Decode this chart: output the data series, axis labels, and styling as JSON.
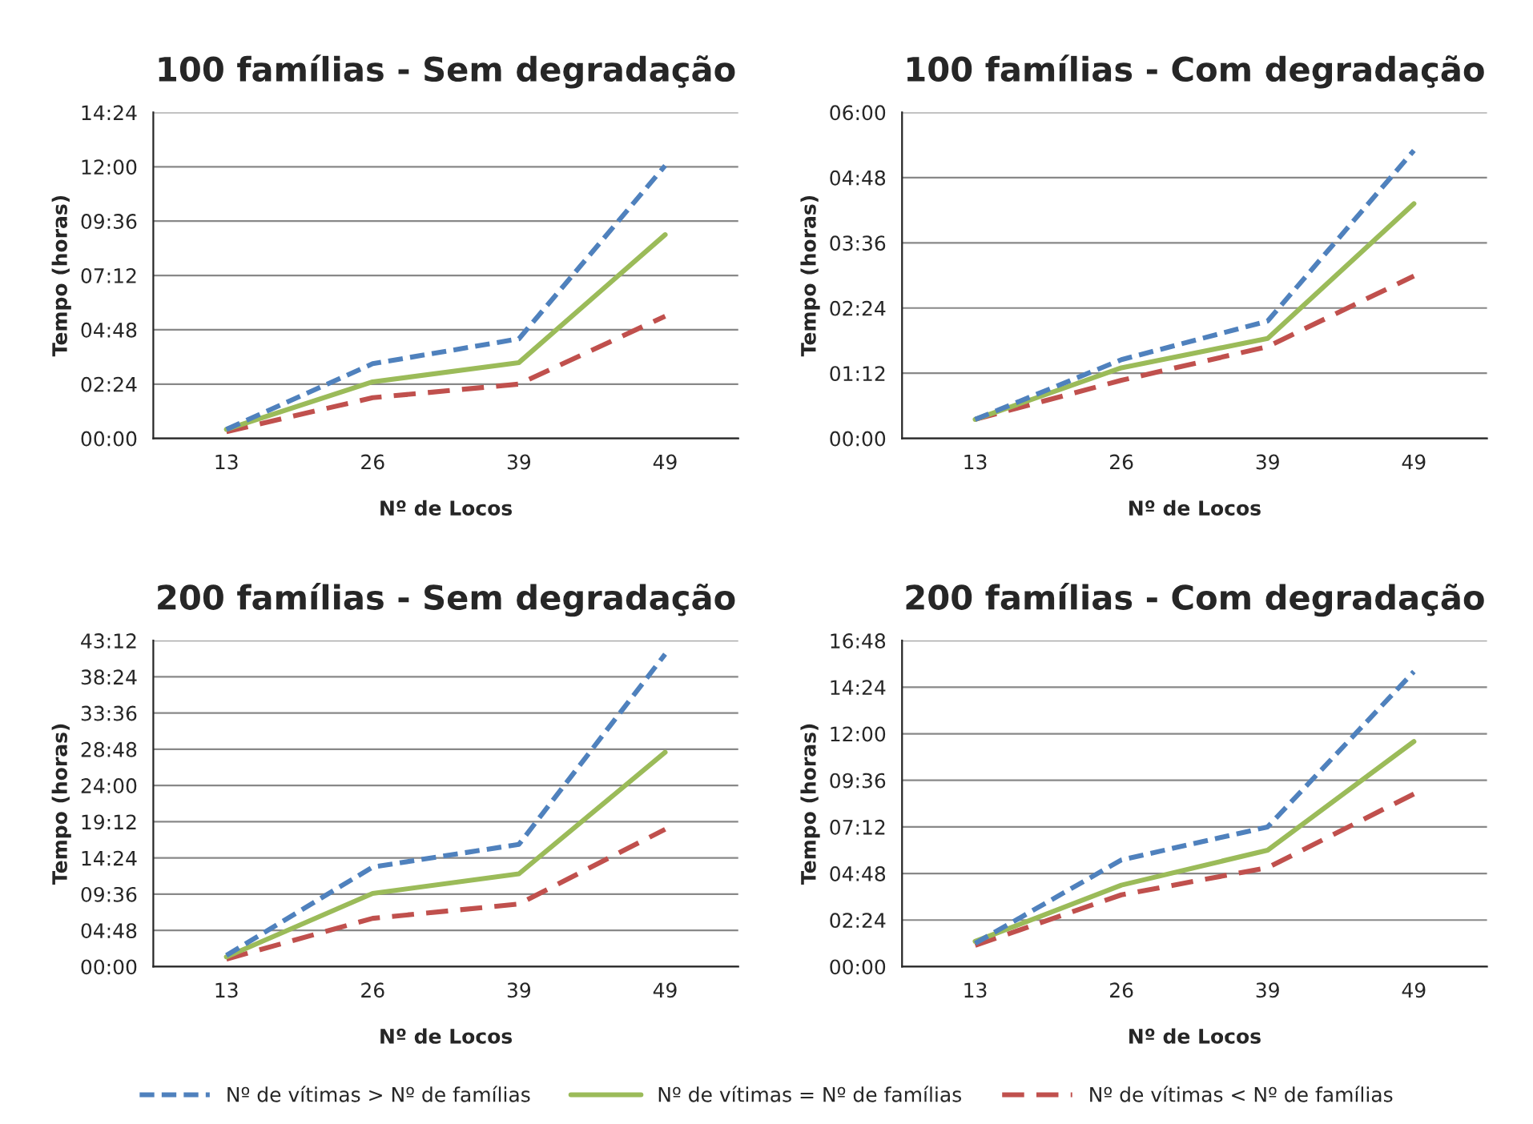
{
  "chart_data": [
    {
      "type": "line",
      "title": "100 famílias - Sem degradação",
      "xlabel": "Nº de Locos",
      "ylabel": "Tempo (horas)",
      "categories": [
        "13",
        "26",
        "39",
        "49"
      ],
      "grid": "y",
      "ylim": [
        0,
        14.4
      ],
      "yticks": [
        {
          "value": 0,
          "label": "00:00"
        },
        {
          "value": 2.4,
          "label": "02:24"
        },
        {
          "value": 4.8,
          "label": "04:48"
        },
        {
          "value": 7.2,
          "label": "07:12"
        },
        {
          "value": 9.6,
          "label": "09:36"
        },
        {
          "value": 12,
          "label": "12:00"
        },
        {
          "value": 14.4,
          "label": "14:24"
        }
      ],
      "series": [
        {
          "color": "#4f81bd",
          "line_style": "dashed",
          "values": [
            0.4,
            3.3,
            4.4,
            12.05
          ]
        },
        {
          "color": "#9bbb59",
          "line_style": "solid",
          "values": [
            0.4,
            2.5,
            3.35,
            9.0
          ]
        },
        {
          "color": "#c0504d",
          "line_style": "dashed",
          "values": [
            0.3,
            1.8,
            2.4,
            5.4
          ]
        }
      ]
    },
    {
      "type": "line",
      "title": "100 famílias - Com degradação",
      "xlabel": "Nº de Locos",
      "ylabel": "Tempo (horas)",
      "categories": [
        "13",
        "26",
        "39",
        "49"
      ],
      "grid": "y",
      "ylim": [
        0,
        6
      ],
      "yticks": [
        {
          "value": 0,
          "label": "00:00"
        },
        {
          "value": 1.2,
          "label": "01:12"
        },
        {
          "value": 2.4,
          "label": "02:24"
        },
        {
          "value": 3.6,
          "label": "03:36"
        },
        {
          "value": 4.8,
          "label": "04:48"
        },
        {
          "value": 6,
          "label": "06:00"
        }
      ],
      "series": [
        {
          "color": "#4f81bd",
          "line_style": "dashed",
          "values": [
            0.35,
            1.45,
            2.16,
            5.3
          ]
        },
        {
          "color": "#9bbb59",
          "line_style": "solid",
          "values": [
            0.35,
            1.3,
            1.84,
            4.32
          ]
        },
        {
          "color": "#c0504d",
          "line_style": "dashed",
          "values": [
            0.35,
            1.07,
            1.69,
            2.99
          ]
        }
      ]
    },
    {
      "type": "line",
      "title": "200 famílias - Sem degradação",
      "xlabel": "Nº de Locos",
      "ylabel": "Tempo (horas)",
      "categories": [
        "13",
        "26",
        "39",
        "49"
      ],
      "grid": "y",
      "ylim": [
        0,
        43.2
      ],
      "yticks": [
        {
          "value": 0,
          "label": "00:00"
        },
        {
          "value": 4.8,
          "label": "04:48"
        },
        {
          "value": 9.6,
          "label": "09:36"
        },
        {
          "value": 14.4,
          "label": "14:24"
        },
        {
          "value": 19.2,
          "label": "19:12"
        },
        {
          "value": 24,
          "label": "24:00"
        },
        {
          "value": 28.8,
          "label": "28:48"
        },
        {
          "value": 33.6,
          "label": "33:36"
        },
        {
          "value": 38.4,
          "label": "38:24"
        },
        {
          "value": 43.2,
          "label": "43:12"
        }
      ],
      "series": [
        {
          "color": "#4f81bd",
          "line_style": "dashed",
          "values": [
            1.5,
            13.2,
            16.2,
            41.4
          ]
        },
        {
          "color": "#9bbb59",
          "line_style": "solid",
          "values": [
            1.3,
            9.7,
            12.3,
            28.4
          ]
        },
        {
          "color": "#c0504d",
          "line_style": "dashed",
          "values": [
            1.0,
            6.4,
            8.3,
            18.2
          ]
        }
      ]
    },
    {
      "type": "line",
      "title": "200 famílias - Com degradação",
      "xlabel": "Nº de Locos",
      "ylabel": "Tempo (horas)",
      "categories": [
        "13",
        "26",
        "39",
        "49"
      ],
      "grid": "y",
      "legend": "bottom",
      "ylim": [
        0,
        16.8
      ],
      "yticks": [
        {
          "value": 0,
          "label": "00:00"
        },
        {
          "value": 2.4,
          "label": "02:24"
        },
        {
          "value": 4.8,
          "label": "04:48"
        },
        {
          "value": 7.2,
          "label": "07:12"
        },
        {
          "value": 9.6,
          "label": "09:36"
        },
        {
          "value": 12,
          "label": "12:00"
        },
        {
          "value": 14.4,
          "label": "14:24"
        },
        {
          "value": 16.8,
          "label": "16:48"
        }
      ],
      "series": [
        {
          "name": "Nº de vítimas > Nº de famílias",
          "color": "#4f81bd",
          "line_style": "dashed",
          "values": [
            1.2,
            5.5,
            7.2,
            15.2
          ]
        },
        {
          "name": "Nº de vítimas = Nº de famílias",
          "color": "#9bbb59",
          "line_style": "solid",
          "values": [
            1.3,
            4.2,
            6.0,
            11.6
          ]
        },
        {
          "name": "Nº de vítimas < Nº de famílias",
          "color": "#c0504d",
          "line_style": "dashed",
          "values": [
            1.1,
            3.7,
            5.1,
            8.9
          ]
        }
      ]
    }
  ]
}
